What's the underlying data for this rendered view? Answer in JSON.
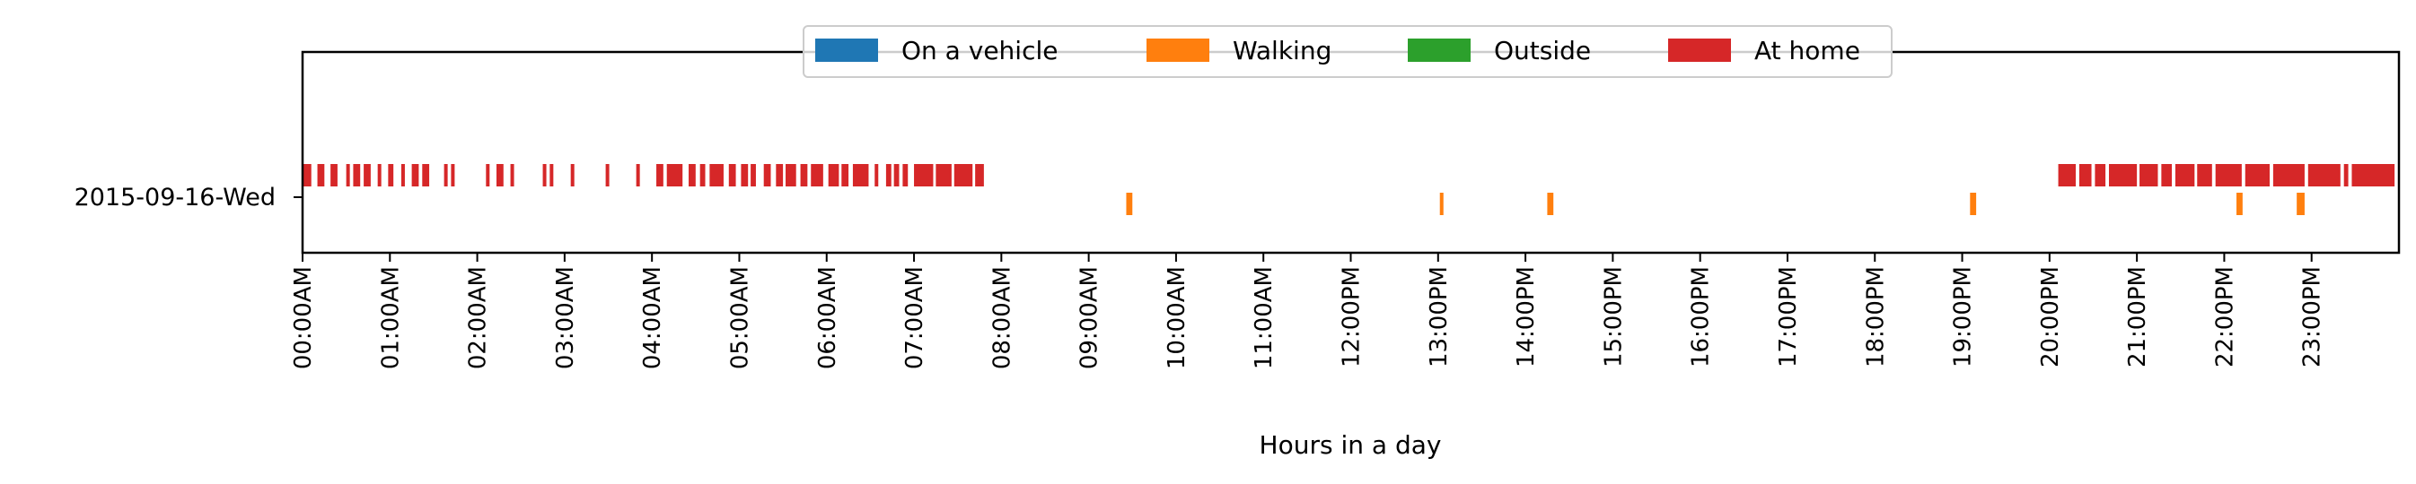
{
  "chart_data": {
    "type": "timeline",
    "xlabel": "Hours in a day",
    "x_ticks": [
      "00:00AM",
      "01:00AM",
      "02:00AM",
      "03:00AM",
      "04:00AM",
      "05:00AM",
      "06:00AM",
      "07:00AM",
      "08:00AM",
      "09:00AM",
      "10:00AM",
      "11:00AM",
      "12:00PM",
      "13:00PM",
      "14:00PM",
      "15:00PM",
      "16:00PM",
      "17:00PM",
      "18:00PM",
      "19:00PM",
      "20:00PM",
      "21:00PM",
      "22:00PM",
      "23:00PM"
    ],
    "x_range_hours": [
      0,
      24
    ],
    "y_categories": [
      "2015-09-16-Wed"
    ],
    "legend": {
      "placement": "upper center",
      "entries": [
        {
          "name": "On a vehicle",
          "color": "#1f77b4"
        },
        {
          "name": "Walking",
          "color": "#ff7f0e"
        },
        {
          "name": "Outside",
          "color": "#2ca02c"
        },
        {
          "name": "At home",
          "color": "#d62728"
        }
      ]
    },
    "series": [
      {
        "name": "At home",
        "color": "#d62728",
        "intervals_hours": [
          [
            0.0,
            0.1
          ],
          [
            0.17,
            0.25
          ],
          [
            0.32,
            0.4
          ],
          [
            0.5,
            0.54
          ],
          [
            0.58,
            0.66
          ],
          [
            0.7,
            0.78
          ],
          [
            0.86,
            0.9
          ],
          [
            0.98,
            1.04
          ],
          [
            1.13,
            1.17
          ],
          [
            1.25,
            1.33
          ],
          [
            1.37,
            1.45
          ],
          [
            1.62,
            1.66
          ],
          [
            1.7,
            1.74
          ],
          [
            2.1,
            2.14
          ],
          [
            2.22,
            2.3
          ],
          [
            2.38,
            2.42
          ],
          [
            2.75,
            2.79
          ],
          [
            2.83,
            2.87
          ],
          [
            3.07,
            3.11
          ],
          [
            3.47,
            3.51
          ],
          [
            3.82,
            3.86
          ],
          [
            4.05,
            4.13
          ],
          [
            4.17,
            4.35
          ],
          [
            4.42,
            4.5
          ],
          [
            4.55,
            4.61
          ],
          [
            4.66,
            4.82
          ],
          [
            4.88,
            4.96
          ],
          [
            5.02,
            5.1
          ],
          [
            5.13,
            5.19
          ],
          [
            5.28,
            5.36
          ],
          [
            5.42,
            5.5
          ],
          [
            5.53,
            5.65
          ],
          [
            5.7,
            5.78
          ],
          [
            5.82,
            5.96
          ],
          [
            6.02,
            6.14
          ],
          [
            6.17,
            6.25
          ],
          [
            6.3,
            6.48
          ],
          [
            6.55,
            6.59
          ],
          [
            6.68,
            6.74
          ],
          [
            6.77,
            6.83
          ],
          [
            6.87,
            6.93
          ],
          [
            7.0,
            7.22
          ],
          [
            7.25,
            7.43
          ],
          [
            7.46,
            7.67
          ],
          [
            7.7,
            7.8
          ],
          [
            20.1,
            20.3
          ],
          [
            20.34,
            20.48
          ],
          [
            20.52,
            20.64
          ],
          [
            20.68,
            21.0
          ],
          [
            21.03,
            21.24
          ],
          [
            21.28,
            21.4
          ],
          [
            21.44,
            21.66
          ],
          [
            21.69,
            21.86
          ],
          [
            21.9,
            22.2
          ],
          [
            22.24,
            22.52
          ],
          [
            22.56,
            22.92
          ],
          [
            22.96,
            23.33
          ],
          [
            23.37,
            23.42
          ],
          [
            23.46,
            23.95
          ]
        ]
      },
      {
        "name": "Walking",
        "color": "#ff7f0e",
        "intervals_hours": [
          [
            9.43,
            9.5
          ],
          [
            13.02,
            13.05
          ],
          [
            14.25,
            14.32
          ],
          [
            19.09,
            19.16
          ],
          [
            22.14,
            22.21
          ],
          [
            22.83,
            22.92
          ]
        ]
      }
    ]
  }
}
